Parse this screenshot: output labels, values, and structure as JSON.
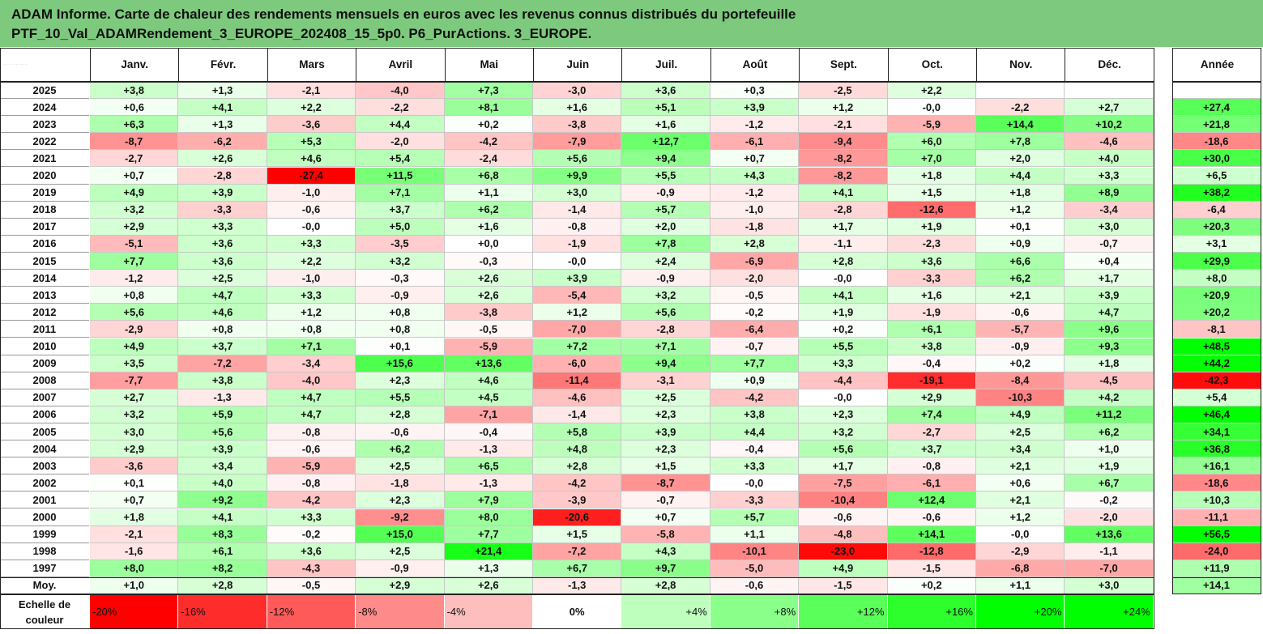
{
  "header": {
    "title_line1": "ADAM Informe. Carte de chaleur des rendements mensuels en euros avec les revenus connus distribués du portefeuille",
    "title_line2": "PTF_10_Val_ADAMRendement_3_EUROPE_202408_15_5p0. P6_PurActions. 3_EUROPE."
  },
  "chart_data": {
    "type": "heatmap",
    "title": "ADAM Informe. Carte de chaleur des rendements mensuels en euros avec les revenus connus distribués du portefeuille PTF_10_Val_ADAMRendement_3_EUROPE_202408_15_5p0. P6_PurActions. 3_EUROPE.",
    "columns": [
      "Janv.",
      "Févr.",
      "Mars",
      "Avril",
      "Mai",
      "Juin",
      "Juil.",
      "Août",
      "Sept.",
      "Oct.",
      "Nov.",
      "Déc."
    ],
    "year_column": "Année",
    "rows": [
      {
        "label": "2025",
        "months": [
          "+3,8",
          "+1,3",
          "-2,1",
          "-4,0",
          "+7,3",
          "-3,0",
          "+3,6",
          "+0,3",
          "-2,5",
          "+2,2",
          "",
          ""
        ],
        "year": ""
      },
      {
        "label": "2024",
        "months": [
          "+0,6",
          "+4,1",
          "+2,2",
          "-2,2",
          "+8,1",
          "+1,6",
          "+5,1",
          "+3,9",
          "+1,2",
          "-0,0",
          "-2,2",
          "+2,7"
        ],
        "year": "+27,4"
      },
      {
        "label": "2023",
        "months": [
          "+6,3",
          "+1,3",
          "-3,6",
          "+4,4",
          "+0,2",
          "-3,8",
          "+1,6",
          "-1,2",
          "-2,1",
          "-5,9",
          "+14,4",
          "+10,2"
        ],
        "year": "+21,8"
      },
      {
        "label": "2022",
        "months": [
          "-8,7",
          "-6,2",
          "+5,3",
          "-2,0",
          "-4,2",
          "-7,9",
          "+12,7",
          "-6,1",
          "-9,4",
          "+6,0",
          "+7,8",
          "-4,6"
        ],
        "year": "-18,6"
      },
      {
        "label": "2021",
        "months": [
          "-2,7",
          "+2,6",
          "+4,6",
          "+5,4",
          "-2,4",
          "+5,6",
          "+9,4",
          "+0,7",
          "-8,2",
          "+7,0",
          "+2,0",
          "+4,0"
        ],
        "year": "+30,0"
      },
      {
        "label": "2020",
        "months": [
          "+0,7",
          "-2,8",
          "-27,4",
          "+11,5",
          "+6,8",
          "+9,9",
          "+5,5",
          "+4,3",
          "-8,2",
          "+1,8",
          "+4,4",
          "+3,3"
        ],
        "year": "+6,5"
      },
      {
        "label": "2019",
        "months": [
          "+4,9",
          "+3,9",
          "-1,0",
          "+7,1",
          "+1,1",
          "+3,0",
          "-0,9",
          "-1,2",
          "+4,1",
          "+1,5",
          "+1,8",
          "+8,9"
        ],
        "year": "+38,2"
      },
      {
        "label": "2018",
        "months": [
          "+3,2",
          "-3,3",
          "-0,6",
          "+3,7",
          "+6,2",
          "-1,4",
          "+5,7",
          "-1,0",
          "-2,8",
          "-12,6",
          "+1,2",
          "-3,4"
        ],
        "year": "-6,4"
      },
      {
        "label": "2017",
        "months": [
          "+2,9",
          "+3,3",
          "-0,0",
          "+5,0",
          "+1,6",
          "-0,8",
          "+2,0",
          "-1,8",
          "+1,7",
          "+1,9",
          "+0,1",
          "+3,0"
        ],
        "year": "+20,3"
      },
      {
        "label": "2016",
        "months": [
          "-5,1",
          "+3,6",
          "+3,3",
          "-3,5",
          "+0,0",
          "-1,9",
          "+7,8",
          "+2,8",
          "-1,1",
          "-2,3",
          "+0,9",
          "-0,7"
        ],
        "year": "+3,1"
      },
      {
        "label": "2015",
        "months": [
          "+7,7",
          "+3,6",
          "+2,2",
          "+3,2",
          "-0,3",
          "-0,0",
          "+2,4",
          "-6,9",
          "+2,8",
          "+3,6",
          "+6,6",
          "+0,4"
        ],
        "year": "+29,9"
      },
      {
        "label": "2014",
        "months": [
          "-1,2",
          "+2,5",
          "-1,0",
          "-0,3",
          "+2,6",
          "+3,9",
          "-0,9",
          "-2,0",
          "-0,0",
          "-3,3",
          "+6,2",
          "+1,7"
        ],
        "year": "+8,0"
      },
      {
        "label": "2013",
        "months": [
          "+0,8",
          "+4,7",
          "+3,3",
          "-0,9",
          "+2,6",
          "-5,4",
          "+3,2",
          "-0,5",
          "+4,1",
          "+1,6",
          "+2,1",
          "+3,9"
        ],
        "year": "+20,9"
      },
      {
        "label": "2012",
        "months": [
          "+5,6",
          "+4,6",
          "+1,2",
          "+0,8",
          "-3,8",
          "+1,2",
          "+5,6",
          "-0,2",
          "+1,9",
          "-1,9",
          "-0,6",
          "+4,7"
        ],
        "year": "+20,2"
      },
      {
        "label": "2011",
        "months": [
          "-2,9",
          "+0,8",
          "+0,8",
          "+0,8",
          "-0,5",
          "-7,0",
          "-2,8",
          "-6,4",
          "+0,2",
          "+6,1",
          "-5,7",
          "+9,6"
        ],
        "year": "-8,1"
      },
      {
        "label": "2010",
        "months": [
          "+4,9",
          "+3,7",
          "+7,1",
          "+0,1",
          "-5,9",
          "+7,2",
          "+7,1",
          "-0,7",
          "+5,5",
          "+3,8",
          "-0,9",
          "+9,3"
        ],
        "year": "+48,5"
      },
      {
        "label": "2009",
        "months": [
          "+3,5",
          "-7,2",
          "-3,4",
          "+15,6",
          "+13,6",
          "-6,0",
          "+9,4",
          "+7,7",
          "+3,3",
          "-0,4",
          "+0,2",
          "+1,8"
        ],
        "year": "+44,2"
      },
      {
        "label": "2008",
        "months": [
          "-7,7",
          "+3,8",
          "-4,0",
          "+2,3",
          "+4,6",
          "-11,4",
          "-3,1",
          "+0,9",
          "-4,4",
          "-19,1",
          "-8,4",
          "-4,5"
        ],
        "year": "-42,3"
      },
      {
        "label": "2007",
        "months": [
          "+2,7",
          "-1,3",
          "+4,7",
          "+5,5",
          "+4,5",
          "-4,6",
          "+2,5",
          "-4,2",
          "-0,0",
          "+2,9",
          "-10,3",
          "+4,2"
        ],
        "year": "+5,4"
      },
      {
        "label": "2006",
        "months": [
          "+3,2",
          "+5,9",
          "+4,7",
          "+2,8",
          "-7,1",
          "-1,4",
          "+2,3",
          "+3,8",
          "+2,3",
          "+7,4",
          "+4,9",
          "+11,2"
        ],
        "year": "+46,4"
      },
      {
        "label": "2005",
        "months": [
          "+3,0",
          "+5,6",
          "-0,8",
          "-0,6",
          "-0,4",
          "+5,8",
          "+3,9",
          "+4,4",
          "+3,2",
          "-2,7",
          "+2,5",
          "+6,2"
        ],
        "year": "+34,1"
      },
      {
        "label": "2004",
        "months": [
          "+2,9",
          "+3,9",
          "-0,6",
          "+6,2",
          "-1,3",
          "+4,8",
          "+2,3",
          "-0,4",
          "+5,6",
          "+3,7",
          "+3,4",
          "+1,0"
        ],
        "year": "+36,8"
      },
      {
        "label": "2003",
        "months": [
          "-3,6",
          "+3,4",
          "-5,9",
          "+2,5",
          "+6,5",
          "+2,8",
          "+1,5",
          "+3,3",
          "+1,7",
          "-0,8",
          "+2,1",
          "+1,9"
        ],
        "year": "+16,1"
      },
      {
        "label": "2002",
        "months": [
          "+0,1",
          "+4,0",
          "-0,8",
          "-1,8",
          "-1,3",
          "-4,2",
          "-8,7",
          "-0,0",
          "-7,5",
          "-6,1",
          "+0,6",
          "+6,7"
        ],
        "year": "-18,6"
      },
      {
        "label": "2001",
        "months": [
          "+0,7",
          "+9,2",
          "-4,2",
          "+2,3",
          "+7,9",
          "-3,9",
          "-0,7",
          "-3,3",
          "-10,4",
          "+12,4",
          "+2,1",
          "-0,2"
        ],
        "year": "+10,3"
      },
      {
        "label": "2000",
        "months": [
          "+1,8",
          "+4,1",
          "+3,3",
          "-9,2",
          "+8,0",
          "-20,6",
          "+0,7",
          "+5,7",
          "-0,6",
          "-0,6",
          "+1,2",
          "-2,0"
        ],
        "year": "-11,1"
      },
      {
        "label": "1999",
        "months": [
          "-2,1",
          "+8,3",
          "-0,2",
          "+15,0",
          "+7,7",
          "+1,5",
          "-5,8",
          "+1,1",
          "-4,8",
          "+14,1",
          "-0,0",
          "+13,6"
        ],
        "year": "+56,5"
      },
      {
        "label": "1998",
        "months": [
          "-1,6",
          "+6,1",
          "+3,6",
          "+2,5",
          "+21,4",
          "-7,2",
          "+4,3",
          "-10,1",
          "-23,0",
          "-12,8",
          "-2,9",
          "-1,1"
        ],
        "year": "-24,0"
      },
      {
        "label": "1997",
        "months": [
          "+8,0",
          "+8,2",
          "-4,3",
          "-0,9",
          "+1,3",
          "+6,7",
          "+9,7",
          "-5,0",
          "+4,9",
          "-1,5",
          "-6,8",
          "-7,0"
        ],
        "year": "+11,9"
      }
    ],
    "average_row": {
      "label": "Moy.",
      "months": [
        "+1,0",
        "+2,8",
        "-0,5",
        "+2,9",
        "+2,6",
        "-1,3",
        "+2,8",
        "-0,6",
        "-1,5",
        "+0,2",
        "+1,1",
        "+3,0"
      ],
      "year": "+14,1"
    },
    "legend": {
      "label_line1": "Echelle de",
      "label_line2": "couleur",
      "steps": [
        "-20%",
        "-16%",
        "-12%",
        "-8%",
        "-4%",
        "0%",
        "+4%",
        "+8%",
        "+12%",
        "+16%",
        "+20%",
        "+24%"
      ]
    },
    "colors": {
      "negative": "#ff0000",
      "positive": "#00ff00",
      "neutral": "#ffffff",
      "title_bg": "#7dc97d"
    }
  }
}
